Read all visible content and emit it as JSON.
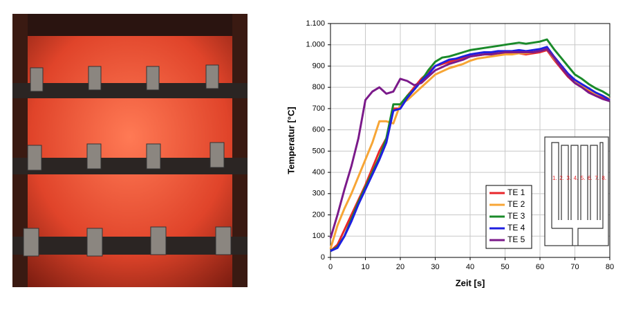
{
  "chart_data": {
    "type": "line",
    "xlabel": "Zeit [s]",
    "ylabel": "Temperatur [°C]",
    "x": [
      0,
      2,
      4,
      6,
      8,
      10,
      12,
      14,
      16,
      18,
      20,
      22,
      24,
      26,
      28,
      30,
      32,
      34,
      36,
      38,
      40,
      42,
      44,
      46,
      48,
      50,
      52,
      54,
      56,
      58,
      60,
      62,
      64,
      66,
      68,
      70,
      72,
      74,
      76,
      78,
      80
    ],
    "series": [
      {
        "name": "TE 1",
        "color": "#e8262a",
        "values": [
          30,
          60,
          130,
          200,
          270,
          340,
          420,
          500,
          560,
          700,
          700,
          760,
          800,
          840,
          870,
          900,
          910,
          920,
          930,
          940,
          945,
          950,
          955,
          958,
          960,
          960,
          960,
          960,
          955,
          960,
          965,
          975,
          930,
          890,
          850,
          820,
          800,
          780,
          760,
          750,
          740
        ]
      },
      {
        "name": "TE 2",
        "color": "#f7a535",
        "values": [
          40,
          150,
          230,
          300,
          380,
          460,
          540,
          640,
          640,
          630,
          720,
          740,
          770,
          800,
          830,
          860,
          875,
          890,
          900,
          910,
          925,
          935,
          940,
          945,
          950,
          955,
          955,
          960,
          960,
          965,
          970,
          980,
          935,
          900,
          860,
          830,
          810,
          790,
          770,
          760,
          745
        ]
      },
      {
        "name": "TE 3",
        "color": "#1a8a2a",
        "values": [
          30,
          50,
          100,
          180,
          260,
          330,
          400,
          470,
          560,
          720,
          720,
          760,
          790,
          830,
          880,
          920,
          940,
          945,
          955,
          965,
          975,
          980,
          985,
          990,
          995,
          1000,
          1005,
          1010,
          1005,
          1010,
          1015,
          1025,
          980,
          940,
          900,
          860,
          840,
          815,
          795,
          780,
          760
        ]
      },
      {
        "name": "TE 4",
        "color": "#1f1fe0",
        "values": [
          30,
          45,
          100,
          170,
          250,
          320,
          390,
          460,
          540,
          690,
          700,
          750,
          790,
          830,
          860,
          900,
          915,
          930,
          935,
          945,
          955,
          960,
          965,
          965,
          970,
          970,
          970,
          975,
          970,
          975,
          980,
          990,
          945,
          905,
          865,
          835,
          815,
          795,
          775,
          760,
          740
        ]
      },
      {
        "name": "TE 5",
        "color": "#7b1a8a",
        "values": [
          90,
          200,
          320,
          430,
          560,
          740,
          780,
          800,
          770,
          780,
          840,
          830,
          810,
          820,
          850,
          880,
          895,
          910,
          920,
          930,
          945,
          950,
          955,
          955,
          960,
          965,
          965,
          965,
          965,
          965,
          970,
          980,
          940,
          895,
          855,
          820,
          800,
          775,
          760,
          745,
          735
        ]
      }
    ],
    "xlim": [
      0,
      80
    ],
    "xticks": [
      0,
      10,
      20,
      30,
      40,
      50,
      60,
      70,
      80
    ],
    "ylim": [
      0,
      1100
    ],
    "yticks": [
      0,
      100,
      200,
      300,
      400,
      500,
      600,
      700,
      800,
      900,
      {
        "value": 1000,
        "label": "1.000"
      },
      {
        "value": 1100,
        "label": "1.100"
      }
    ],
    "grid": true,
    "legend": "lower right",
    "inset_labels": [
      "1.",
      "2.",
      "3.",
      "4.",
      "5.",
      "6.",
      "7.",
      "8."
    ]
  }
}
